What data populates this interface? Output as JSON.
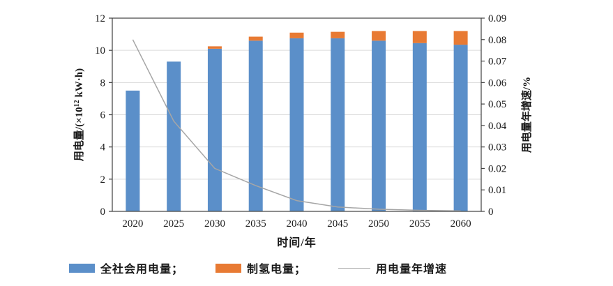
{
  "colors": {
    "bar_blue": "#5B8FC9",
    "bar_orange": "#E87A33",
    "line_gray": "#A6A6A6",
    "gridline": "#D9D9D9",
    "axis": "#404040",
    "text": "#1a1a1a",
    "background": "#FFFFFF"
  },
  "chart_data": {
    "type": "bar",
    "stacked": true,
    "grid": true,
    "categories": [
      "2020",
      "2025",
      "2030",
      "2035",
      "2040",
      "2045",
      "2050",
      "2055",
      "2060"
    ],
    "series": [
      {
        "name": "全社会用电量",
        "kind": "bar",
        "axis": "left",
        "color": "#5B8FC9",
        "values": [
          7.5,
          9.3,
          10.1,
          10.6,
          10.75,
          10.75,
          10.6,
          10.45,
          10.35
        ]
      },
      {
        "name": "制氢电量",
        "kind": "bar",
        "axis": "left",
        "color": "#E87A33",
        "values": [
          0,
          0,
          0.15,
          0.25,
          0.35,
          0.4,
          0.6,
          0.75,
          0.85
        ]
      },
      {
        "name": "用电量年增速",
        "kind": "line",
        "axis": "right",
        "color": "#A6A6A6",
        "values": [
          0.08,
          0.042,
          0.02,
          0.012,
          0.005,
          0.002,
          0.001,
          0.0005,
          0.0002
        ]
      }
    ],
    "xlabel": "时间/年",
    "left_axis": {
      "title_pre": "用电量/(×10",
      "title_sup": "12",
      "title_post": " kW·h)",
      "min": 0,
      "max": 12,
      "step": 2
    },
    "right_axis": {
      "title": "用电量年增速/%",
      "min": 0,
      "max": 0.09,
      "step": 0.01,
      "decimals": 2
    },
    "legend_position": "bottom",
    "legend": [
      {
        "label": "全社会用电量；",
        "kind": "swatch",
        "color": "#5B8FC9"
      },
      {
        "label": "制氢电量；",
        "kind": "swatch",
        "color": "#E87A33"
      },
      {
        "label": "用电量年增速",
        "kind": "line",
        "color": "#A6A6A6"
      }
    ]
  }
}
